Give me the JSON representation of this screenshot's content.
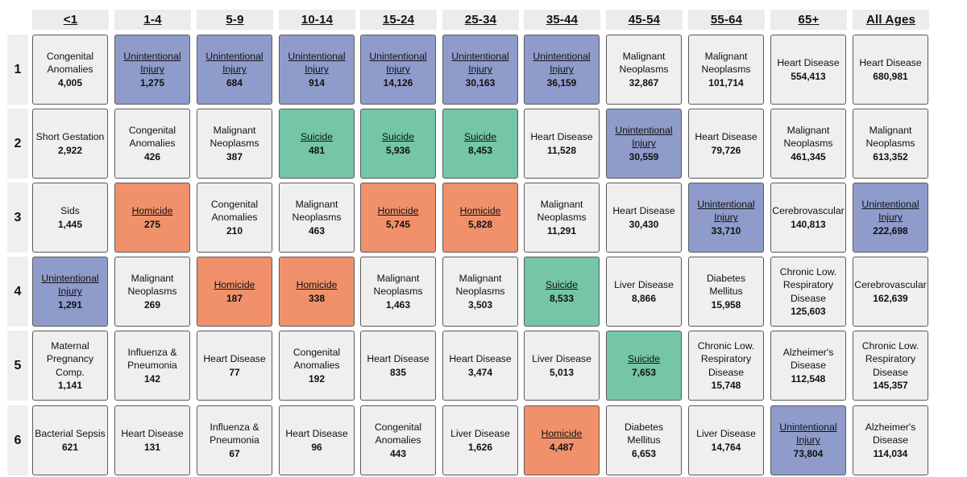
{
  "chart_data": {
    "type": "table",
    "columns": [
      "<1",
      "1-4",
      "5-9",
      "10-14",
      "15-24",
      "25-34",
      "35-44",
      "45-54",
      "55-64",
      "65+",
      "All Ages"
    ],
    "ranks": [
      "1",
      "2",
      "3",
      "4",
      "5",
      "6"
    ],
    "category_colors": {
      "Unintentional Injury": "#8f9ccb",
      "Suicide": "#74c6a6",
      "Homicide": "#f0916b",
      "default": "#efefef"
    },
    "cells": [
      [
        {
          "cause": "Congenital Anomalies",
          "value": "4,005"
        },
        {
          "cause": "Unintentional Injury",
          "value": "1,275"
        },
        {
          "cause": "Unintentional Injury",
          "value": "684"
        },
        {
          "cause": "Unintentional Injury",
          "value": "914"
        },
        {
          "cause": "Unintentional Injury",
          "value": "14,126"
        },
        {
          "cause": "Unintentional Injury",
          "value": "30,163"
        },
        {
          "cause": "Unintentional Injury",
          "value": "36,159"
        },
        {
          "cause": "Malignant Neoplasms",
          "value": "32,867"
        },
        {
          "cause": "Malignant Neoplasms",
          "value": "101,714"
        },
        {
          "cause": "Heart Disease",
          "value": "554,413"
        },
        {
          "cause": "Heart Disease",
          "value": "680,981"
        }
      ],
      [
        {
          "cause": "Short Gestation",
          "value": "2,922"
        },
        {
          "cause": "Congenital Anomalies",
          "value": "426"
        },
        {
          "cause": "Malignant Neoplasms",
          "value": "387"
        },
        {
          "cause": "Suicide",
          "value": "481"
        },
        {
          "cause": "Suicide",
          "value": "5,936"
        },
        {
          "cause": "Suicide",
          "value": "8,453"
        },
        {
          "cause": "Heart Disease",
          "value": "11,528"
        },
        {
          "cause": "Unintentional Injury",
          "value": "30,559"
        },
        {
          "cause": "Heart Disease",
          "value": "79,726"
        },
        {
          "cause": "Malignant Neoplasms",
          "value": "461,345"
        },
        {
          "cause": "Malignant Neoplasms",
          "value": "613,352"
        }
      ],
      [
        {
          "cause": "Sids",
          "value": "1,445"
        },
        {
          "cause": "Homicide",
          "value": "275"
        },
        {
          "cause": "Congenital Anomalies",
          "value": "210"
        },
        {
          "cause": "Malignant Neoplasms",
          "value": "463"
        },
        {
          "cause": "Homicide",
          "value": "5,745"
        },
        {
          "cause": "Homicide",
          "value": "5,828"
        },
        {
          "cause": "Malignant Neoplasms",
          "value": "11,291"
        },
        {
          "cause": "Heart Disease",
          "value": "30,430"
        },
        {
          "cause": "Unintentional Injury",
          "value": "33,710"
        },
        {
          "cause": "Cerebrovascular",
          "value": "140,813"
        },
        {
          "cause": "Unintentional Injury",
          "value": "222,698"
        }
      ],
      [
        {
          "cause": "Unintentional Injury",
          "value": "1,291"
        },
        {
          "cause": "Malignant Neoplasms",
          "value": "269"
        },
        {
          "cause": "Homicide",
          "value": "187"
        },
        {
          "cause": "Homicide",
          "value": "338"
        },
        {
          "cause": "Malignant Neoplasms",
          "value": "1,463"
        },
        {
          "cause": "Malignant Neoplasms",
          "value": "3,503"
        },
        {
          "cause": "Suicide",
          "value": "8,533"
        },
        {
          "cause": "Liver Disease",
          "value": "8,866"
        },
        {
          "cause": "Diabetes Mellitus",
          "value": "15,958"
        },
        {
          "cause": "Chronic Low. Respiratory Disease",
          "value": "125,603"
        },
        {
          "cause": "Cerebrovascular",
          "value": "162,639"
        }
      ],
      [
        {
          "cause": "Maternal Pregnancy Comp.",
          "value": "1,141"
        },
        {
          "cause": "Influenza & Pneumonia",
          "value": "142"
        },
        {
          "cause": "Heart Disease",
          "value": "77"
        },
        {
          "cause": "Congenital Anomalies",
          "value": "192"
        },
        {
          "cause": "Heart Disease",
          "value": "835"
        },
        {
          "cause": "Heart Disease",
          "value": "3,474"
        },
        {
          "cause": "Liver Disease",
          "value": "5,013"
        },
        {
          "cause": "Suicide",
          "value": "7,653"
        },
        {
          "cause": "Chronic Low. Respiratory Disease",
          "value": "15,748"
        },
        {
          "cause": "Alzheimer's Disease",
          "value": "112,548"
        },
        {
          "cause": "Chronic Low. Respiratory Disease",
          "value": "145,357"
        }
      ],
      [
        {
          "cause": "Bacterial Sepsis",
          "value": "621"
        },
        {
          "cause": "Heart Disease",
          "value": "131"
        },
        {
          "cause": "Influenza & Pneumonia",
          "value": "67"
        },
        {
          "cause": "Heart Disease",
          "value": "96"
        },
        {
          "cause": "Congenital Anomalies",
          "value": "443"
        },
        {
          "cause": "Liver Disease",
          "value": "1,626"
        },
        {
          "cause": "Homicide",
          "value": "4,487"
        },
        {
          "cause": "Diabetes Mellitus",
          "value": "6,653"
        },
        {
          "cause": "Liver Disease",
          "value": "14,764"
        },
        {
          "cause": "Unintentional Injury",
          "value": "73,804"
        },
        {
          "cause": "Alzheimer's Disease",
          "value": "114,034"
        }
      ]
    ]
  }
}
